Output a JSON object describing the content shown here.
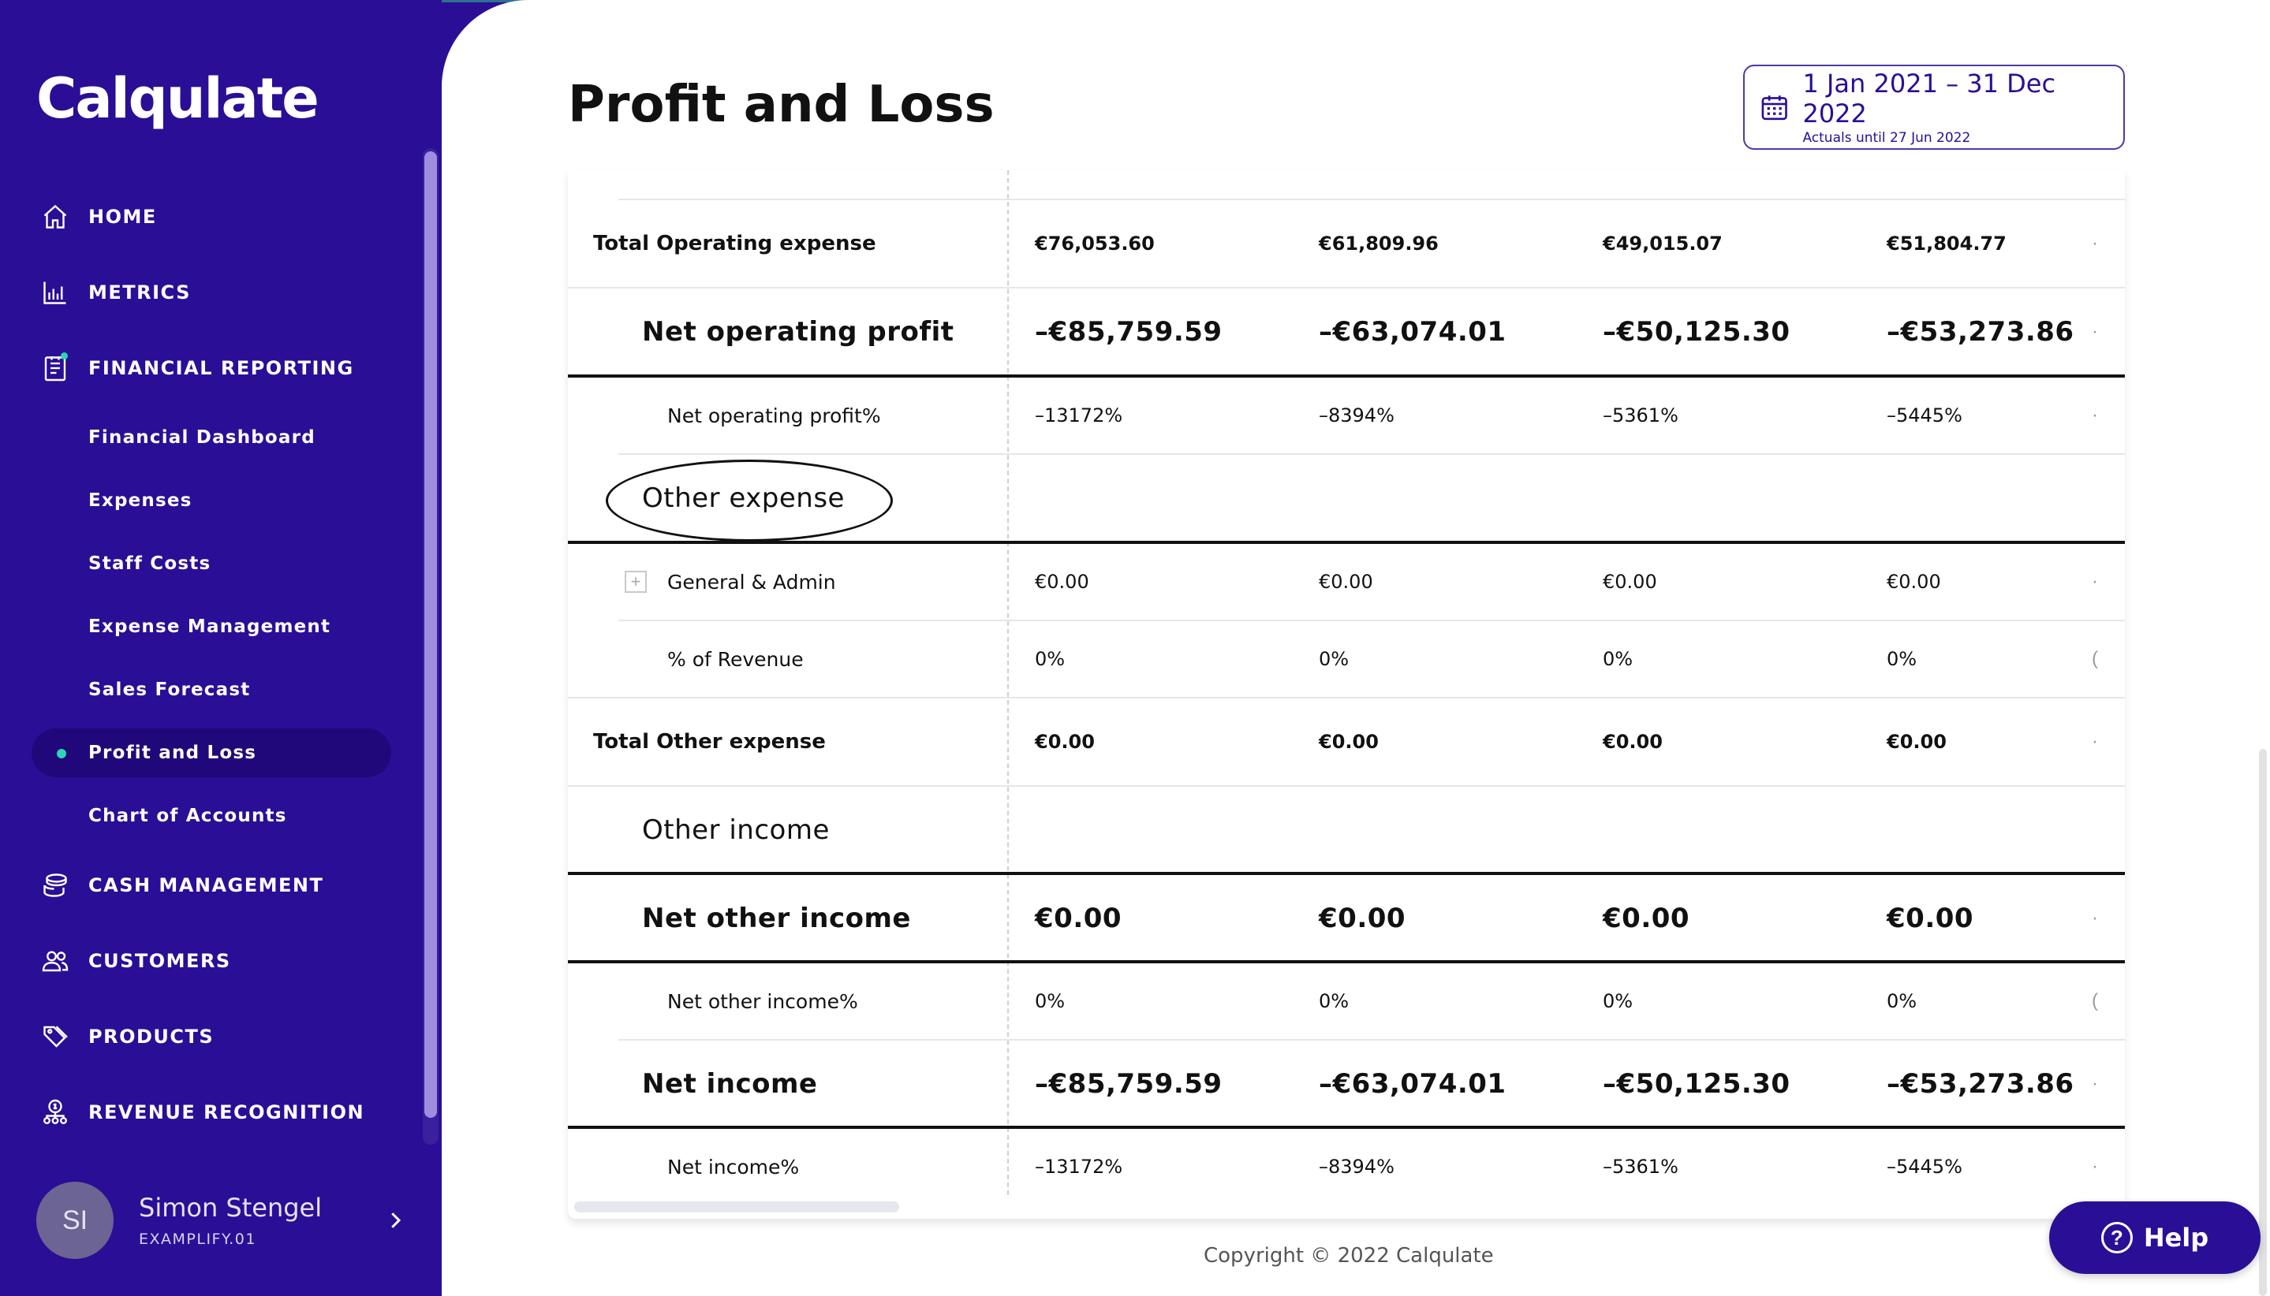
{
  "app": {
    "name": "Calqulate"
  },
  "sidebar": {
    "nav": [
      {
        "label": "HOME",
        "icon": "home-icon"
      },
      {
        "label": "METRICS",
        "icon": "metrics-icon"
      },
      {
        "label": "FINANCIAL REPORTING",
        "icon": "report-icon"
      },
      {
        "label": "CASH MANAGEMENT",
        "icon": "cash-icon"
      },
      {
        "label": "CUSTOMERS",
        "icon": "customers-icon"
      },
      {
        "label": "PRODUCTS",
        "icon": "products-icon"
      },
      {
        "label": "REVENUE RECOGNITION",
        "icon": "revenue-recognition-icon"
      }
    ],
    "sub": [
      {
        "label": "Financial Dashboard"
      },
      {
        "label": "Expenses"
      },
      {
        "label": "Staff Costs"
      },
      {
        "label": "Expense Management"
      },
      {
        "label": "Sales Forecast"
      },
      {
        "label": "Profit and Loss",
        "active": true
      },
      {
        "label": "Chart of Accounts"
      }
    ],
    "user": {
      "initials": "SI",
      "name": "Simon Stengel",
      "org": "EXAMPLIFY.01"
    }
  },
  "header": {
    "title": "Profit and Loss",
    "date_range": "1 Jan 2021 – 31 Dec 2022",
    "actuals_note": "Actuals until 27 Jun 2022"
  },
  "table": {
    "total_operating_expense": {
      "label": "Total Operating expense",
      "values": [
        "€76,053.60",
        "€61,809.96",
        "€49,015.07",
        "€51,804.77"
      ]
    },
    "net_operating_profit": {
      "label": "Net operating profit",
      "values": [
        "–€85,759.59",
        "–€63,074.01",
        "–€50,125.30",
        "–€53,273.86"
      ]
    },
    "net_operating_profit_pct": {
      "label": "Net operating profit%",
      "values": [
        "–13172%",
        "–8394%",
        "–5361%",
        "–5445%"
      ]
    },
    "other_expense": {
      "label": "Other expense"
    },
    "general_admin": {
      "label": "General & Admin",
      "values": [
        "€0.00",
        "€0.00",
        "€0.00",
        "€0.00"
      ]
    },
    "pct_of_revenue": {
      "label": "% of Revenue",
      "values": [
        "0%",
        "0%",
        "0%",
        "0%"
      ]
    },
    "total_other_expense": {
      "label": "Total Other expense",
      "values": [
        "€0.00",
        "€0.00",
        "€0.00",
        "€0.00"
      ]
    },
    "other_income": {
      "label": "Other income"
    },
    "net_other_income": {
      "label": "Net other income",
      "values": [
        "€0.00",
        "€0.00",
        "€0.00",
        "€0.00"
      ]
    },
    "net_other_income_pct": {
      "label": "Net other income%",
      "values": [
        "0%",
        "0%",
        "0%",
        "0%"
      ]
    },
    "net_income": {
      "label": "Net income",
      "values": [
        "–€85,759.59",
        "–€63,074.01",
        "–€50,125.30",
        "–€53,273.86"
      ]
    },
    "net_income_pct": {
      "label": "Net income%",
      "values": [
        "–13172%",
        "–8394%",
        "–5361%",
        "–5445%"
      ]
    }
  },
  "footer": {
    "copyright": "Copyright © 2022 Calqulate",
    "help_label": "Help"
  },
  "colors": {
    "brand": "#2a0e96",
    "accent": "#2ad6b5"
  }
}
